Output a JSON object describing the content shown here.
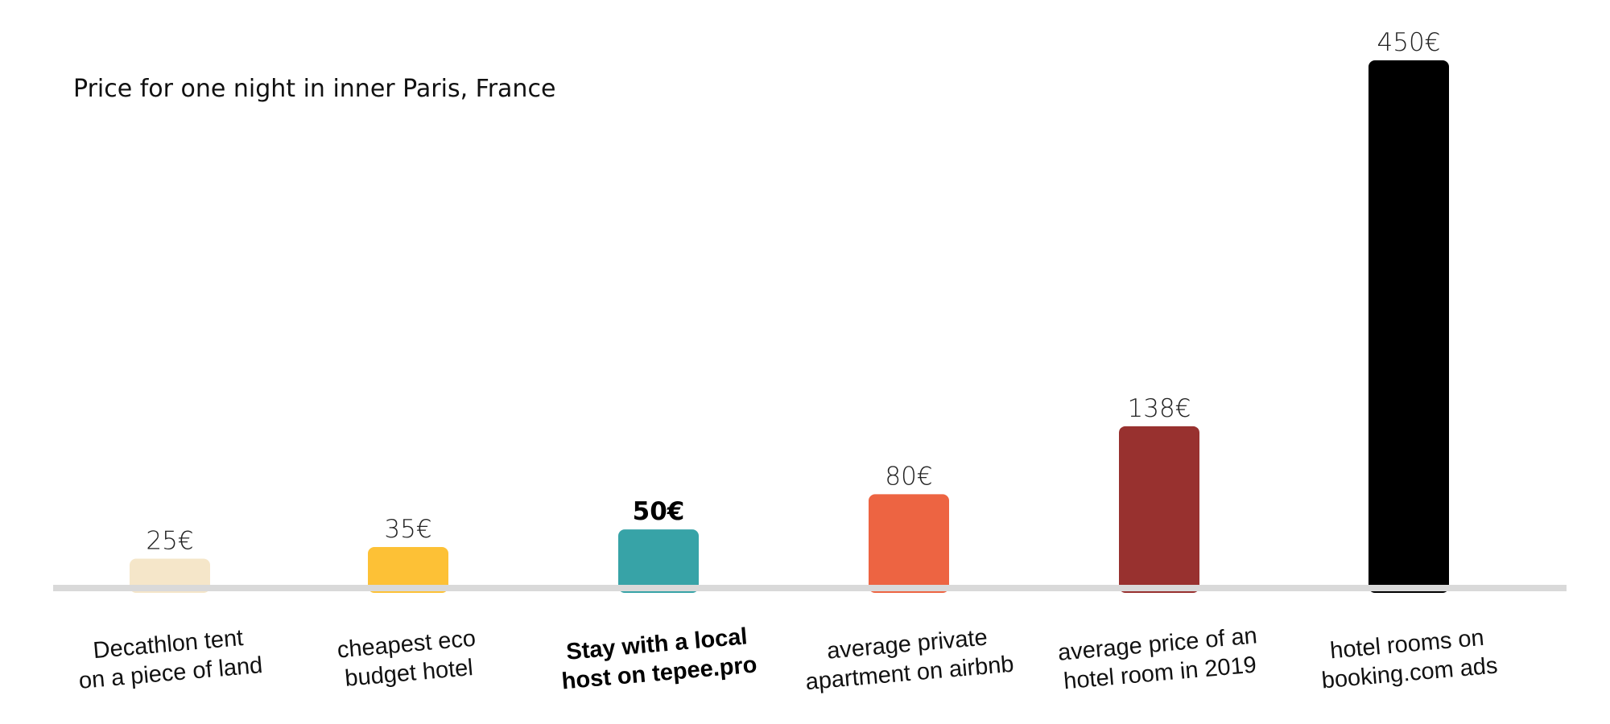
{
  "chart_data": {
    "type": "bar",
    "title": "Price for one night in inner Paris, France",
    "xlabel": "",
    "ylabel": "",
    "ylim": [
      0,
      450
    ],
    "grid": false,
    "legend": "none",
    "bars": [
      {
        "value": 25,
        "value_label": "25€",
        "label_lines": [
          "Decathlon tent",
          "on a piece of land"
        ],
        "color": "#f5e6c9",
        "highlight": false
      },
      {
        "value": 35,
        "value_label": "35€",
        "label_lines": [
          "cheapest eco",
          "budget hotel"
        ],
        "color": "#fdc136",
        "highlight": false
      },
      {
        "value": 50,
        "value_label": "50€",
        "label_lines": [
          "Stay with a local",
          "host on tepee.pro"
        ],
        "color": "#37a3a7",
        "highlight": true
      },
      {
        "value": 80,
        "value_label": "80€",
        "label_lines": [
          "average private",
          "apartment on airbnb"
        ],
        "color": "#ed6442",
        "highlight": false
      },
      {
        "value": 138,
        "value_label": "138€",
        "label_lines": [
          "average price of an",
          "hotel room in 2019"
        ],
        "color": "#98312f",
        "highlight": false
      },
      {
        "value": 450,
        "value_label": "450€",
        "label_lines": [
          "hotel rooms on",
          "booking.com ads"
        ],
        "color": "#000000",
        "highlight": false
      }
    ],
    "baseline_color": "#d9d9d9"
  }
}
